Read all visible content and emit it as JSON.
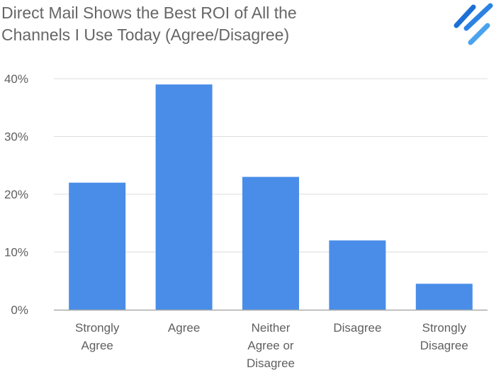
{
  "chart_data": {
    "type": "bar",
    "title": "Direct Mail Shows the Best ROI of All the\nChannels I Use Today (Agree/Disagree)",
    "categories": [
      [
        "Strongly",
        "Agree"
      ],
      [
        "Agree"
      ],
      [
        "Neither",
        "Agree or",
        "Disagree"
      ],
      [
        "Disagree"
      ],
      [
        "Strongly",
        "Disagree"
      ]
    ],
    "values": [
      22,
      39,
      23,
      12,
      4.5
    ],
    "ylim": [
      0,
      40
    ],
    "yticks": [
      0,
      10,
      20,
      30,
      40
    ],
    "ytick_labels": [
      "0%",
      "10%",
      "20%",
      "30%",
      "40%"
    ],
    "grid": true,
    "legend": "none",
    "bar_color": "#4a8de8",
    "grid_color": "#dddddd",
    "axis_color": "#aaaaaa"
  },
  "brand": {
    "logo_icon": "stripes-logo-icon",
    "logo_colors": [
      "#1c6fd6",
      "#4aa3ef"
    ]
  }
}
